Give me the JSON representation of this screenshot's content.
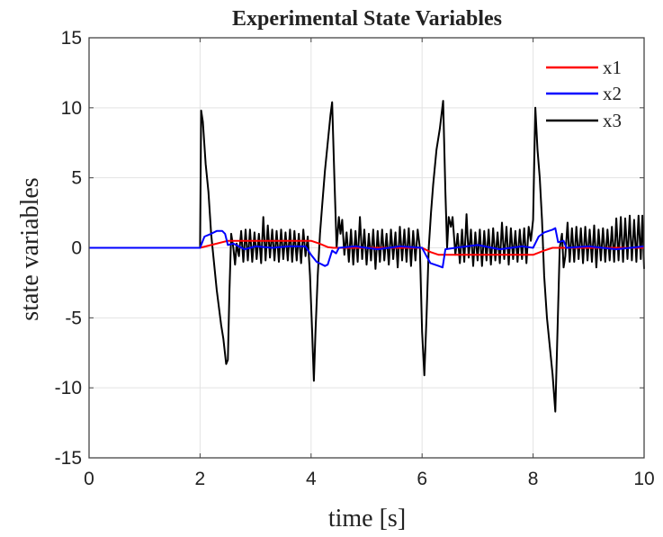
{
  "chart_data": {
    "type": "line",
    "title": "Experimental State Variables",
    "xlabel": "time [s]",
    "ylabel": "state variables",
    "xlim": [
      0,
      10
    ],
    "ylim": [
      -15,
      15
    ],
    "xticks": [
      0,
      2,
      4,
      6,
      8,
      10
    ],
    "yticks": [
      15,
      10,
      5,
      0,
      -5,
      -10,
      -15
    ],
    "grid": true,
    "legend_position": "top-right",
    "series": [
      {
        "name": "x1",
        "color": "#ff0000",
        "points": [
          [
            0,
            0
          ],
          [
            2,
            0
          ],
          [
            2.2,
            0.2
          ],
          [
            2.5,
            0.5
          ],
          [
            4.0,
            0.5
          ],
          [
            4.15,
            0.3
          ],
          [
            4.3,
            0.05
          ],
          [
            4.4,
            0
          ],
          [
            6.0,
            0
          ],
          [
            6.15,
            -0.3
          ],
          [
            6.3,
            -0.5
          ],
          [
            8.0,
            -0.5
          ],
          [
            8.2,
            -0.2
          ],
          [
            8.35,
            0
          ],
          [
            10,
            0
          ]
        ]
      },
      {
        "name": "x2",
        "color": "#0000ff",
        "points": [
          [
            0,
            0
          ],
          [
            2,
            0
          ],
          [
            2.08,
            0.8
          ],
          [
            2.2,
            1.0
          ],
          [
            2.3,
            1.2
          ],
          [
            2.4,
            1.2
          ],
          [
            2.45,
            1.0
          ],
          [
            2.5,
            0.2
          ],
          [
            2.6,
            0.3
          ],
          [
            2.8,
            -0.1
          ],
          [
            3.0,
            0.1
          ],
          [
            3.3,
            0
          ],
          [
            3.6,
            0.1
          ],
          [
            3.9,
            0.1
          ],
          [
            4.0,
            -0.5
          ],
          [
            4.1,
            -1.0
          ],
          [
            4.25,
            -1.3
          ],
          [
            4.3,
            -1.2
          ],
          [
            4.38,
            -0.2
          ],
          [
            4.45,
            -0.4
          ],
          [
            4.5,
            0
          ],
          [
            4.8,
            0.1
          ],
          [
            5.2,
            -0.1
          ],
          [
            5.6,
            0.1
          ],
          [
            6.0,
            0
          ],
          [
            6.08,
            -0.6
          ],
          [
            6.15,
            -1.1
          ],
          [
            6.3,
            -1.3
          ],
          [
            6.37,
            -1.4
          ],
          [
            6.42,
            -0.1
          ],
          [
            6.6,
            0
          ],
          [
            7.0,
            0.2
          ],
          [
            7.4,
            -0.1
          ],
          [
            7.8,
            0.1
          ],
          [
            8.0,
            0
          ],
          [
            8.1,
            0.8
          ],
          [
            8.2,
            1.1
          ],
          [
            8.35,
            1.3
          ],
          [
            8.4,
            1.4
          ],
          [
            8.45,
            0.4
          ],
          [
            8.55,
            0.5
          ],
          [
            8.6,
            0
          ],
          [
            9.0,
            0.1
          ],
          [
            9.5,
            -0.1
          ],
          [
            10,
            0.1
          ]
        ]
      },
      {
        "name": "x3",
        "color": "#000000",
        "points": [
          [
            0,
            0
          ],
          [
            2.0,
            0
          ],
          [
            2.02,
            9.8
          ],
          [
            2.05,
            9.0
          ],
          [
            2.1,
            6
          ],
          [
            2.15,
            4
          ],
          [
            2.2,
            1
          ],
          [
            2.25,
            -1
          ],
          [
            2.3,
            -3
          ],
          [
            2.38,
            -5.5
          ],
          [
            2.42,
            -6.5
          ],
          [
            2.47,
            -8.3
          ],
          [
            2.5,
            -8.0
          ],
          [
            2.53,
            -3
          ],
          [
            2.56,
            1.0
          ],
          [
            2.6,
            0
          ],
          [
            2.63,
            -1.2
          ],
          [
            2.66,
            0.3
          ],
          [
            2.7,
            -0.6
          ],
          [
            2.74,
            1.2
          ],
          [
            2.78,
            -1.0
          ],
          [
            2.82,
            1.3
          ],
          [
            2.86,
            -0.9
          ],
          [
            2.9,
            1.3
          ],
          [
            2.94,
            -1.0
          ],
          [
            2.98,
            1.1
          ],
          [
            3.02,
            -0.8
          ],
          [
            3.06,
            1.0
          ],
          [
            3.1,
            -1.1
          ],
          [
            3.14,
            2.2
          ],
          [
            3.18,
            -0.9
          ],
          [
            3.22,
            1.6
          ],
          [
            3.26,
            -0.7
          ],
          [
            3.3,
            1.3
          ],
          [
            3.34,
            -0.9
          ],
          [
            3.38,
            1.2
          ],
          [
            3.42,
            -1.0
          ],
          [
            3.46,
            1.3
          ],
          [
            3.5,
            -0.8
          ],
          [
            3.54,
            1.1
          ],
          [
            3.58,
            -0.9
          ],
          [
            3.62,
            1.3
          ],
          [
            3.66,
            -1.0
          ],
          [
            3.7,
            1.2
          ],
          [
            3.74,
            -0.9
          ],
          [
            3.78,
            1.0
          ],
          [
            3.82,
            -1.1
          ],
          [
            3.86,
            1.3
          ],
          [
            3.9,
            -0.6
          ],
          [
            3.94,
            0.8
          ],
          [
            3.98,
            -2
          ],
          [
            4.02,
            -6
          ],
          [
            4.05,
            -9.5
          ],
          [
            4.08,
            -6
          ],
          [
            4.12,
            -2
          ],
          [
            4.16,
            1
          ],
          [
            4.2,
            3
          ],
          [
            4.25,
            5.5
          ],
          [
            4.3,
            7.5
          ],
          [
            4.35,
            9.5
          ],
          [
            4.38,
            10.4
          ],
          [
            4.42,
            5
          ],
          [
            4.46,
            0
          ],
          [
            4.5,
            2.2
          ],
          [
            4.53,
            1.0
          ],
          [
            4.56,
            2.0
          ],
          [
            4.6,
            -0.5
          ],
          [
            4.64,
            1.1
          ],
          [
            4.68,
            -1.0
          ],
          [
            4.72,
            1.3
          ],
          [
            4.76,
            -1.2
          ],
          [
            4.8,
            1.2
          ],
          [
            4.84,
            -1.0
          ],
          [
            4.88,
            2.2
          ],
          [
            4.92,
            -0.8
          ],
          [
            4.96,
            1.3
          ],
          [
            5.0,
            -1.2
          ],
          [
            5.04,
            1.0
          ],
          [
            5.08,
            -0.9
          ],
          [
            5.12,
            1.3
          ],
          [
            5.16,
            -1.5
          ],
          [
            5.2,
            1.2
          ],
          [
            5.24,
            -1.0
          ],
          [
            5.28,
            1.3
          ],
          [
            5.32,
            -0.9
          ],
          [
            5.36,
            1.0
          ],
          [
            5.4,
            -1.2
          ],
          [
            5.44,
            1.3
          ],
          [
            5.48,
            -0.8
          ],
          [
            5.52,
            1.1
          ],
          [
            5.56,
            -1.4
          ],
          [
            5.6,
            1.5
          ],
          [
            5.64,
            -0.9
          ],
          [
            5.68,
            1.3
          ],
          [
            5.72,
            -1.0
          ],
          [
            5.76,
            1.4
          ],
          [
            5.8,
            -1.3
          ],
          [
            5.84,
            1.2
          ],
          [
            5.88,
            -0.9
          ],
          [
            5.92,
            1.3
          ],
          [
            5.96,
            0
          ],
          [
            6.0,
            -6
          ],
          [
            6.04,
            -9.1
          ],
          [
            6.08,
            -5
          ],
          [
            6.12,
            0
          ],
          [
            6.16,
            2.5
          ],
          [
            6.2,
            4.5
          ],
          [
            6.26,
            7
          ],
          [
            6.32,
            8.5
          ],
          [
            6.38,
            10.5
          ],
          [
            6.42,
            4
          ],
          [
            6.45,
            0
          ],
          [
            6.48,
            2.2
          ],
          [
            6.52,
            1.5
          ],
          [
            6.55,
            2.2
          ],
          [
            6.6,
            -0.5
          ],
          [
            6.64,
            1.0
          ],
          [
            6.68,
            -1.1
          ],
          [
            6.72,
            1.3
          ],
          [
            6.76,
            -1.0
          ],
          [
            6.8,
            2.4
          ],
          [
            6.84,
            -0.7
          ],
          [
            6.88,
            1.3
          ],
          [
            6.92,
            -1.3
          ],
          [
            6.96,
            1.1
          ],
          [
            7.0,
            -0.9
          ],
          [
            7.04,
            1.3
          ],
          [
            7.08,
            -1.3
          ],
          [
            7.12,
            1.2
          ],
          [
            7.16,
            -0.9
          ],
          [
            7.2,
            1.3
          ],
          [
            7.24,
            -1.2
          ],
          [
            7.28,
            1.4
          ],
          [
            7.32,
            -0.9
          ],
          [
            7.36,
            1.1
          ],
          [
            7.4,
            -1.1
          ],
          [
            7.44,
            1.8
          ],
          [
            7.48,
            -0.8
          ],
          [
            7.52,
            1.5
          ],
          [
            7.56,
            -1.2
          ],
          [
            7.6,
            1.4
          ],
          [
            7.64,
            -0.8
          ],
          [
            7.68,
            1.2
          ],
          [
            7.72,
            -1.0
          ],
          [
            7.76,
            1.3
          ],
          [
            7.8,
            -0.8
          ],
          [
            7.84,
            1.4
          ],
          [
            7.88,
            -1.1
          ],
          [
            7.92,
            1.5
          ],
          [
            7.96,
            0.5
          ],
          [
            8.0,
            2
          ],
          [
            8.04,
            10
          ],
          [
            8.08,
            7
          ],
          [
            8.12,
            5
          ],
          [
            8.16,
            2
          ],
          [
            8.2,
            -2
          ],
          [
            8.25,
            -5
          ],
          [
            8.3,
            -7
          ],
          [
            8.35,
            -9
          ],
          [
            8.4,
            -11.7
          ],
          [
            8.44,
            -6
          ],
          [
            8.48,
            0
          ],
          [
            8.52,
            1.0
          ],
          [
            8.55,
            -1.4
          ],
          [
            8.58,
            -0.6
          ],
          [
            8.62,
            1.8
          ],
          [
            8.66,
            -1.0
          ],
          [
            8.7,
            1.4
          ],
          [
            8.74,
            -1.0
          ],
          [
            8.78,
            1.5
          ],
          [
            8.82,
            -0.8
          ],
          [
            8.86,
            1.4
          ],
          [
            8.9,
            -1.1
          ],
          [
            8.94,
            1.5
          ],
          [
            8.98,
            -0.9
          ],
          [
            9.02,
            1.3
          ],
          [
            9.06,
            -1.0
          ],
          [
            9.1,
            1.6
          ],
          [
            9.14,
            -1.4
          ],
          [
            9.18,
            1.3
          ],
          [
            9.22,
            -0.9
          ],
          [
            9.26,
            1.4
          ],
          [
            9.3,
            -1.0
          ],
          [
            9.34,
            1.3
          ],
          [
            9.38,
            -0.9
          ],
          [
            9.42,
            1.5
          ],
          [
            9.46,
            -1.0
          ],
          [
            9.5,
            2.1
          ],
          [
            9.54,
            -0.9
          ],
          [
            9.58,
            2.2
          ],
          [
            9.62,
            -1.0
          ],
          [
            9.66,
            2.1
          ],
          [
            9.7,
            -0.8
          ],
          [
            9.74,
            2.3
          ],
          [
            9.78,
            -0.9
          ],
          [
            9.82,
            2.0
          ],
          [
            9.86,
            -1.0
          ],
          [
            9.9,
            2.3
          ],
          [
            9.94,
            -0.8
          ],
          [
            9.97,
            2.3
          ],
          [
            10,
            -1.5
          ]
        ]
      }
    ]
  }
}
